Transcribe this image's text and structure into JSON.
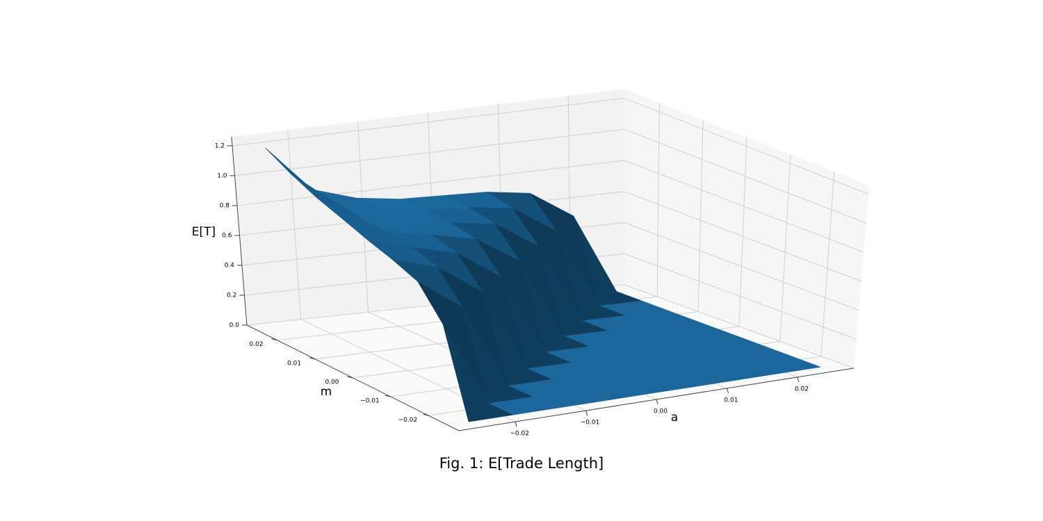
{
  "chart_data": {
    "type": "surface",
    "title": "Fig. 1: E[Trade Length]",
    "xlabel": "a",
    "ylabel": "m",
    "zlabel": "E[T]",
    "color": "#1f77b4",
    "x": [
      -0.025,
      -0.01875,
      -0.0125,
      -0.00625,
      0,
      0.00625,
      0.0125,
      0.01875,
      0.025
    ],
    "y": [
      -0.025,
      -0.01875,
      -0.0125,
      -0.00625,
      0,
      0.00625,
      0.0125,
      0.01875,
      0.025
    ],
    "z": [
      [
        0,
        0,
        0,
        0,
        0,
        0,
        0,
        0,
        0
      ],
      [
        0.53,
        0,
        0,
        0,
        0,
        0,
        0,
        0,
        0
      ],
      [
        0.73,
        0.53,
        0,
        0,
        0,
        0,
        0,
        0,
        0
      ],
      [
        0.8,
        0.72,
        0.53,
        0,
        0,
        0,
        0,
        0,
        0
      ],
      [
        0.86,
        0.78,
        0.71,
        0.52,
        0,
        0,
        0,
        0,
        0
      ],
      [
        0.93,
        0.81,
        0.76,
        0.7,
        0.52,
        0,
        0,
        0,
        0
      ],
      [
        1.0,
        0.83,
        0.78,
        0.74,
        0.7,
        0.52,
        0,
        0,
        0
      ],
      [
        1.09,
        0.86,
        0.79,
        0.76,
        0.74,
        0.7,
        0.52,
        0,
        0
      ],
      [
        1.2,
        0.89,
        0.8,
        0.76,
        0.75,
        0.74,
        0.7,
        0.52,
        0
      ]
    ],
    "xlim": [
      -0.028,
      0.028
    ],
    "ylim": [
      -0.028,
      0.028
    ],
    "zlim": [
      0,
      1.26
    ],
    "xticks": [
      {
        "value": -0.02,
        "label": "−0.02"
      },
      {
        "value": -0.01,
        "label": "−0.01"
      },
      {
        "value": 0,
        "label": "0.00"
      },
      0.01,
      0.02
    ],
    "yticks": [
      {
        "value": -0.02,
        "label": "−0.02"
      },
      {
        "value": -0.01,
        "label": "−0.01"
      },
      {
        "value": 0,
        "label": "0.00"
      },
      0.01,
      0.02
    ],
    "zticks": [
      {
        "value": 0,
        "label": "0.0"
      },
      0.2,
      0.4,
      0.6,
      0.8,
      {
        "value": 1,
        "label": "1.0"
      },
      1.2
    ],
    "grid": true
  }
}
